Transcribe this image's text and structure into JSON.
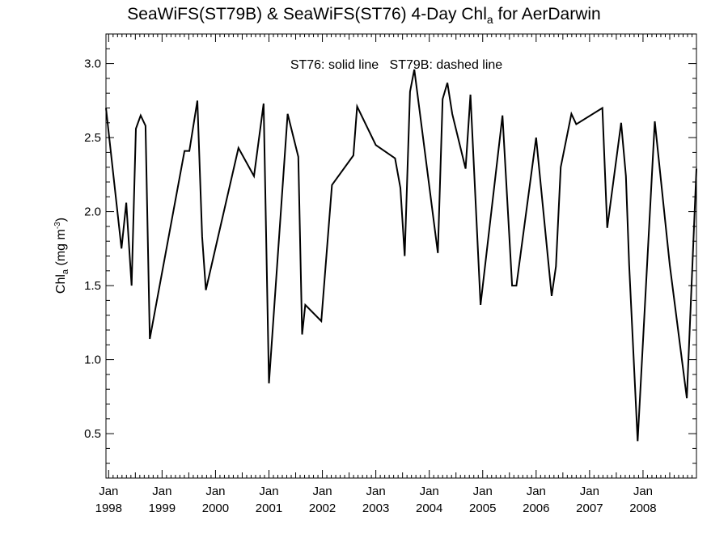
{
  "title": {
    "main": "SeaWiFS(ST79B) & SeaWiFS(ST76) 4-Day Chl",
    "sub": "a",
    "suffix": " for AerDarwin"
  },
  "chart_data": {
    "type": "line",
    "legend_note": "ST76: solid line   ST79B: dashed line",
    "ylabel": {
      "main": "Chl",
      "sub": "a",
      "unit_open": " (mg m",
      "unit_sup": "-3",
      "unit_close": ")"
    },
    "ylim": [
      0.2,
      3.2
    ],
    "yticks": [
      0.5,
      1.0,
      1.5,
      2.0,
      2.5,
      3.0
    ],
    "ytick_labels": [
      "0.5",
      "1.0",
      "1.5",
      "2.0",
      "2.5",
      "3.0"
    ],
    "xlim": [
      1997.95,
      2009.0
    ],
    "xticks": [
      {
        "x": 1998.0,
        "month": "Jan",
        "year": "1998"
      },
      {
        "x": 1999.0,
        "month": "Jan",
        "year": "1999"
      },
      {
        "x": 2000.0,
        "month": "Jan",
        "year": "2000"
      },
      {
        "x": 2001.0,
        "month": "Jan",
        "year": "2001"
      },
      {
        "x": 2002.0,
        "month": "Jan",
        "year": "2002"
      },
      {
        "x": 2003.0,
        "month": "Jan",
        "year": "2003"
      },
      {
        "x": 2004.0,
        "month": "Jan",
        "year": "2004"
      },
      {
        "x": 2005.0,
        "month": "Jan",
        "year": "2005"
      },
      {
        "x": 2006.0,
        "month": "Jan",
        "year": "2006"
      },
      {
        "x": 2007.0,
        "month": "Jan",
        "year": "2007"
      },
      {
        "x": 2008.0,
        "month": "Jan",
        "year": "2008"
      }
    ],
    "series": [
      {
        "line_style": "solid",
        "color": "#000000",
        "points": [
          [
            1997.95,
            2.7
          ],
          [
            1998.24,
            1.75
          ],
          [
            1998.33,
            2.06
          ],
          [
            1998.43,
            1.5
          ],
          [
            1998.51,
            2.56
          ],
          [
            1998.6,
            2.65
          ],
          [
            1998.69,
            2.58
          ],
          [
            1998.77,
            1.14
          ],
          [
            1999.42,
            2.41
          ],
          [
            1999.51,
            2.41
          ],
          [
            1999.66,
            2.75
          ],
          [
            1999.75,
            1.83
          ],
          [
            1999.82,
            1.47
          ],
          [
            2000.43,
            2.43
          ],
          [
            2000.72,
            2.24
          ],
          [
            2000.9,
            2.73
          ],
          [
            2001.0,
            0.84
          ],
          [
            2001.35,
            2.66
          ],
          [
            2001.55,
            2.37
          ],
          [
            2001.62,
            1.17
          ],
          [
            2001.68,
            1.37
          ],
          [
            2001.98,
            1.26
          ],
          [
            2002.18,
            2.18
          ],
          [
            2002.58,
            2.38
          ],
          [
            2002.65,
            2.71
          ],
          [
            2003.0,
            2.45
          ],
          [
            2003.36,
            2.36
          ],
          [
            2003.46,
            2.16
          ],
          [
            2003.54,
            1.7
          ],
          [
            2003.64,
            2.81
          ],
          [
            2003.72,
            2.96
          ],
          [
            2004.16,
            1.72
          ],
          [
            2004.25,
            2.76
          ],
          [
            2004.34,
            2.87
          ],
          [
            2004.43,
            2.66
          ],
          [
            2004.68,
            2.29
          ],
          [
            2004.77,
            2.79
          ],
          [
            2004.96,
            1.37
          ],
          [
            2005.37,
            2.65
          ],
          [
            2005.55,
            1.5
          ],
          [
            2005.63,
            1.5
          ],
          [
            2006.0,
            2.5
          ],
          [
            2006.29,
            1.43
          ],
          [
            2006.37,
            1.63
          ],
          [
            2006.46,
            2.3
          ],
          [
            2006.66,
            2.66
          ],
          [
            2006.75,
            2.59
          ],
          [
            2007.24,
            2.7
          ],
          [
            2007.33,
            1.89
          ],
          [
            2007.59,
            2.6
          ],
          [
            2007.68,
            2.24
          ],
          [
            2007.74,
            1.64
          ],
          [
            2007.9,
            0.45
          ],
          [
            2008.22,
            2.61
          ],
          [
            2008.5,
            1.64
          ],
          [
            2008.82,
            0.74
          ],
          [
            2009.0,
            2.29
          ]
        ]
      }
    ]
  }
}
